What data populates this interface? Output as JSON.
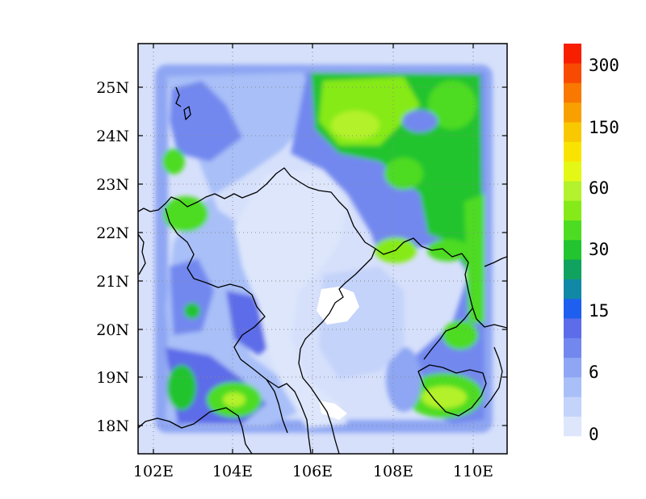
{
  "map": {
    "x_ticks": [
      "102E",
      "104E",
      "106E",
      "108E",
      "110E"
    ],
    "y_ticks": [
      "25N",
      "24N",
      "23N",
      "22N",
      "21N",
      "20N",
      "19N",
      "18N"
    ],
    "lon_range": [
      101.6,
      110.8
    ],
    "lat_range": [
      17.4,
      25.9
    ],
    "grid": "dotted",
    "colors": {
      "background_field": "#d6e0fb",
      "frame": "#000000",
      "coast": "#000000",
      "missing": "#ffffff"
    }
  },
  "colorbar": {
    "position": "right",
    "labels": [
      "300",
      "150",
      "60",
      "30",
      "15",
      "6",
      "0"
    ],
    "colors": [
      "#dde6fb",
      "#c4d3fa",
      "#a8bff8",
      "#8ea6f3",
      "#7288ef",
      "#5d6ce8",
      "#1f5ff0",
      "#1188a5",
      "#10a35f",
      "#22c42f",
      "#4edc22",
      "#86ea18",
      "#b3f22c",
      "#e4f816",
      "#f8e400",
      "#f8c800",
      "#f8a000",
      "#f87800",
      "#f84a00",
      "#f81e00"
    ]
  }
}
